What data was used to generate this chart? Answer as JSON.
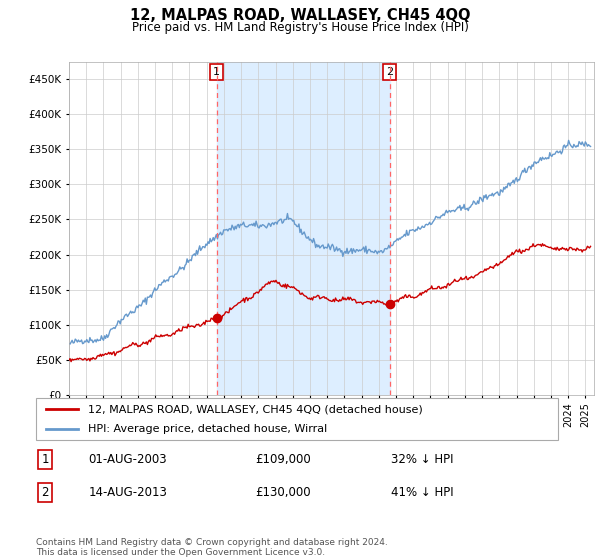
{
  "title": "12, MALPAS ROAD, WALLASEY, CH45 4QQ",
  "subtitle": "Price paid vs. HM Land Registry's House Price Index (HPI)",
  "legend_label_red": "12, MALPAS ROAD, WALLASEY, CH45 4QQ (detached house)",
  "legend_label_blue": "HPI: Average price, detached house, Wirral",
  "transaction1_date": "01-AUG-2003",
  "transaction1_price": "£109,000",
  "transaction1_hpi": "32% ↓ HPI",
  "transaction2_date": "14-AUG-2013",
  "transaction2_price": "£130,000",
  "transaction2_hpi": "41% ↓ HPI",
  "footer": "Contains HM Land Registry data © Crown copyright and database right 2024.\nThis data is licensed under the Open Government Licence v3.0.",
  "vline1_x": 2003.58,
  "vline2_x": 2013.62,
  "marker1_x": 2003.58,
  "marker1_y_red": 109000,
  "marker2_x": 2013.62,
  "marker2_y_red": 130000,
  "ylim": [
    0,
    475000
  ],
  "xlim_start": 1995.0,
  "xlim_end": 2025.5,
  "red_color": "#cc0000",
  "blue_color": "#6699cc",
  "blue_fill_color": "#ddeeff",
  "vline_color": "#ff6666",
  "background_color": "#ffffff",
  "grid_color": "#cccccc"
}
